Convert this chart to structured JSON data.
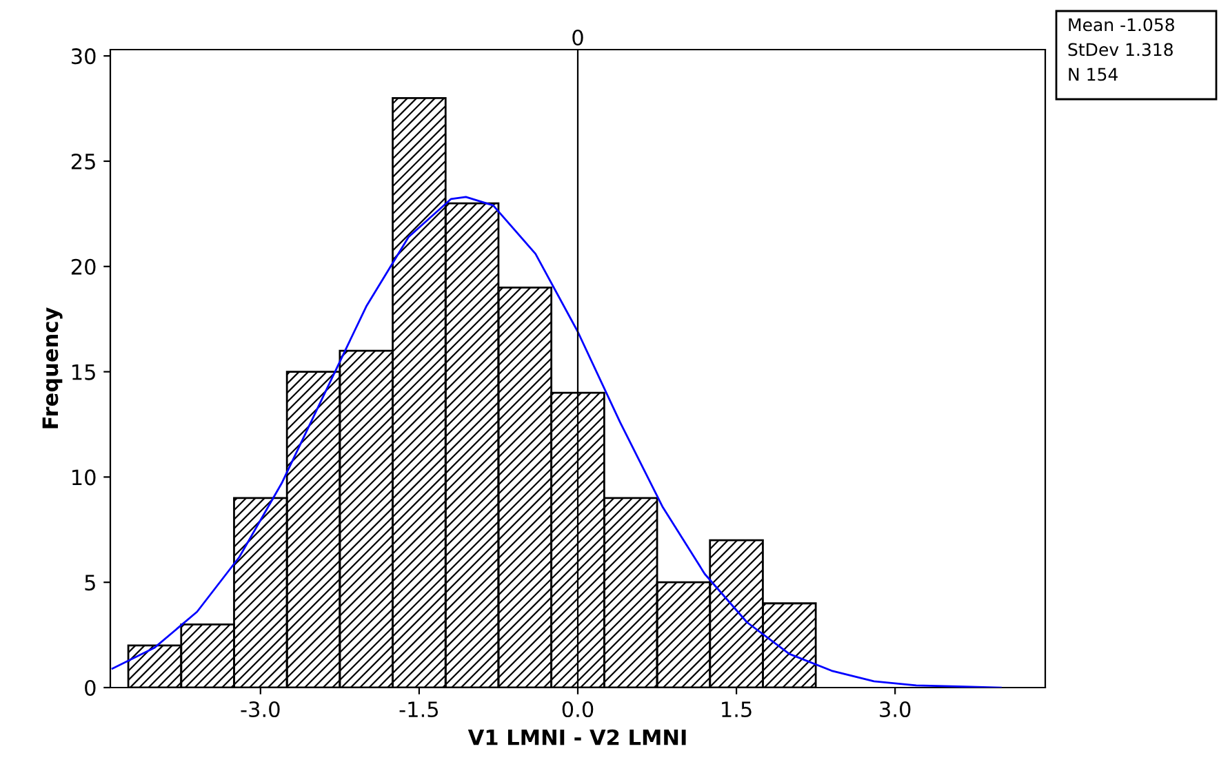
{
  "chart_data": {
    "type": "histogram",
    "xlabel": "V1 LMNI - V2 LMNI",
    "ylabel": "Frequency",
    "series": [
      {
        "bins": [
          -4.25,
          -3.75,
          -3.25,
          -2.75,
          -2.25,
          -1.75,
          -1.25,
          -0.75,
          -0.25,
          0.25,
          0.75,
          1.25,
          1.75,
          2.25
        ],
        "values": [
          2,
          3,
          9,
          15,
          16,
          28,
          23,
          19,
          14,
          9,
          5,
          7,
          4
        ],
        "color": "#000000"
      },
      {
        "type": "line",
        "x": [
          -4.4,
          -4.0,
          -3.6,
          -3.2,
          -2.8,
          -2.4,
          -2.0,
          -1.6,
          -1.2,
          -1.058,
          -0.8,
          -0.4,
          0.0,
          0.4,
          0.8,
          1.2,
          1.6,
          2.0,
          2.4,
          2.8,
          3.2,
          3.6,
          4.0
        ],
        "values": [
          0.9,
          1.9,
          3.6,
          6.2,
          9.7,
          13.9,
          18.1,
          21.4,
          23.2,
          23.3,
          22.9,
          20.6,
          16.9,
          12.6,
          8.6,
          5.4,
          3.1,
          1.6,
          0.8,
          0.3,
          0.1,
          0.05,
          0.0
        ],
        "color": "#0000ff"
      }
    ],
    "xlim": [
      -4.42,
      4.42
    ],
    "ylim": [
      0,
      30.3
    ],
    "xticks": [
      {
        "value": -3,
        "label": "-3.0"
      },
      {
        "value": -1.5,
        "label": "-1.5"
      },
      {
        "value": 0,
        "label": "0.0"
      },
      {
        "value": 1.5,
        "label": "1.5"
      },
      {
        "value": 3,
        "label": "3.0"
      }
    ],
    "yticks": [
      0,
      5,
      10,
      15,
      20,
      25,
      30
    ],
    "ref_lines": [
      {
        "axis": "x",
        "value": 0,
        "label": "0",
        "color": "#000000"
      }
    ],
    "annotations": [
      "Mean -1.058",
      "StDev 1.318",
      "N 154"
    ],
    "grid": false,
    "legend": false
  }
}
